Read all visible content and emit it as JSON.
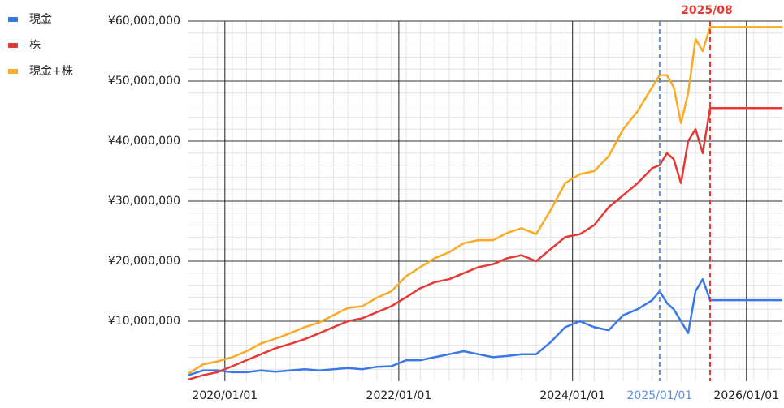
{
  "chart_data": {
    "type": "line",
    "x": [
      "2019/08/01",
      "2019/10/01",
      "2019/12/01",
      "2020/02/01",
      "2020/04/01",
      "2020/06/01",
      "2020/08/01",
      "2020/10/01",
      "2020/12/01",
      "2021/02/01",
      "2021/04/01",
      "2021/06/01",
      "2021/08/01",
      "2021/10/01",
      "2021/12/01",
      "2022/02/01",
      "2022/04/01",
      "2022/06/01",
      "2022/08/01",
      "2022/10/01",
      "2022/12/01",
      "2023/02/01",
      "2023/04/01",
      "2023/06/01",
      "2023/08/01",
      "2023/10/01",
      "2023/12/01",
      "2024/02/01",
      "2024/04/01",
      "2024/06/01",
      "2024/08/01",
      "2024/10/01",
      "2024/12/01",
      "2025/01/01",
      "2025/02/01",
      "2025/03/01",
      "2025/04/01",
      "2025/05/01",
      "2025/06/01",
      "2025/07/01",
      "2025/08/01",
      "2026/06/01"
    ],
    "series": [
      {
        "name": "現金",
        "color": "#3b78e7",
        "values": [
          1000000,
          1800000,
          1800000,
          1500000,
          1500000,
          1800000,
          1600000,
          1800000,
          2000000,
          1800000,
          2000000,
          2200000,
          2000000,
          2400000,
          2500000,
          3500000,
          3500000,
          4000000,
          4500000,
          5000000,
          4500000,
          4000000,
          4200000,
          4500000,
          4500000,
          6500000,
          9000000,
          10000000,
          9000000,
          8500000,
          11000000,
          12000000,
          13500000,
          15000000,
          13000000,
          12000000,
          10000000,
          8000000,
          15000000,
          17000000,
          13500000,
          13500000
        ]
      },
      {
        "name": "株",
        "color": "#e53935",
        "values": [
          300000,
          1000000,
          1500000,
          2500000,
          3500000,
          4500000,
          5500000,
          6200000,
          7000000,
          8000000,
          9000000,
          10000000,
          10500000,
          11500000,
          12500000,
          14000000,
          15500000,
          16500000,
          17000000,
          18000000,
          19000000,
          19500000,
          20500000,
          21000000,
          20000000,
          22000000,
          24000000,
          24500000,
          26000000,
          29000000,
          31000000,
          33000000,
          35500000,
          36000000,
          38000000,
          37000000,
          33000000,
          40000000,
          42000000,
          38000000,
          45500000,
          45500000
        ]
      },
      {
        "name": "現金+株",
        "color": "#f9ab25",
        "values": [
          1300000,
          2800000,
          3300000,
          4000000,
          5000000,
          6300000,
          7100000,
          8000000,
          9000000,
          9800000,
          11000000,
          12200000,
          12500000,
          13900000,
          15000000,
          17500000,
          19000000,
          20500000,
          21500000,
          23000000,
          23500000,
          23500000,
          24700000,
          25500000,
          24500000,
          28500000,
          33000000,
          34500000,
          35000000,
          37500000,
          42000000,
          45000000,
          49000000,
          51000000,
          51000000,
          49000000,
          43000000,
          48000000,
          57000000,
          55000000,
          59000000,
          59000000
        ]
      }
    ],
    "xlim": [
      "2019/08/01",
      "2026/06/01"
    ],
    "xticks": [
      "2020/01/01",
      "2022/01/01",
      "2024/01/01",
      "2025/01/01",
      "2026/01/01"
    ],
    "ylim": [
      0,
      60000000
    ],
    "yticks": [
      {
        "value": 10000000,
        "label": "¥10,000,000"
      },
      {
        "value": 20000000,
        "label": "¥20,000,000"
      },
      {
        "value": 30000000,
        "label": "¥30,000,000"
      },
      {
        "value": 40000000,
        "label": "¥40,000,000"
      },
      {
        "value": 50000000,
        "label": "¥50,000,000"
      },
      {
        "value": 60000000,
        "label": "¥60,000,000"
      }
    ],
    "vlines": [
      {
        "x": "2025/01/01",
        "color": "#5b8fe0"
      },
      {
        "x": "2025/08/01",
        "label": "2025/08",
        "color": "#e53935"
      }
    ],
    "grid": true,
    "legend": "left"
  }
}
